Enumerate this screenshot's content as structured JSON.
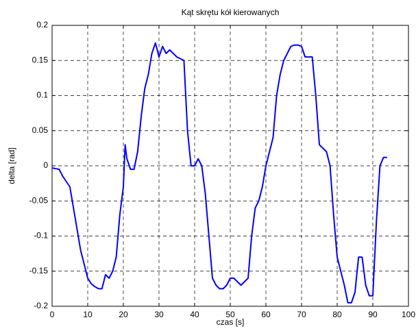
{
  "chart_data": {
    "type": "line",
    "title": "Kąt skrętu kół kierowanych",
    "x_label": "czas [s]",
    "y_label": "delta [rad]",
    "x": [
      0,
      2,
      3,
      5,
      6,
      7,
      8,
      9,
      10,
      11,
      12,
      13,
      14,
      15,
      16,
      17,
      18,
      19,
      20,
      20.5,
      21,
      22,
      23,
      24,
      25,
      26,
      27,
      28,
      29,
      30,
      31,
      32,
      33,
      34,
      35,
      37,
      38,
      39,
      40,
      41,
      42,
      43,
      44,
      45,
      46,
      47,
      48,
      49,
      50,
      51,
      52,
      53,
      55,
      56,
      57,
      58,
      59,
      60,
      61,
      62,
      63,
      64,
      65,
      66,
      67,
      68,
      69,
      70,
      71,
      72,
      73,
      74,
      75,
      76,
      77,
      78,
      79,
      80,
      81,
      82,
      83,
      84,
      85,
      86,
      87,
      88,
      89,
      90,
      91,
      92,
      93,
      94
    ],
    "series": [
      {
        "color": "#0000ff",
        "values": [
          -0.003,
          -0.005,
          -0.015,
          -0.03,
          -0.06,
          -0.09,
          -0.12,
          -0.14,
          -0.16,
          -0.168,
          -0.172,
          -0.175,
          -0.175,
          -0.155,
          -0.16,
          -0.15,
          -0.13,
          -0.07,
          -0.03,
          0.03,
          0.01,
          -0.005,
          -0.005,
          0.02,
          0.07,
          0.11,
          0.13,
          0.16,
          0.175,
          0.155,
          0.17,
          0.16,
          0.165,
          0.16,
          0.155,
          0.15,
          0.05,
          0.0,
          0.0,
          0.01,
          0.0,
          -0.04,
          -0.1,
          -0.16,
          -0.17,
          -0.175,
          -0.175,
          -0.17,
          -0.16,
          -0.16,
          -0.165,
          -0.17,
          -0.16,
          -0.1,
          -0.06,
          -0.05,
          -0.03,
          0.0,
          0.02,
          0.04,
          0.1,
          0.13,
          0.15,
          0.16,
          0.17,
          0.172,
          0.172,
          0.17,
          0.155,
          0.155,
          0.155,
          0.1,
          0.03,
          0.025,
          0.02,
          0.0,
          -0.07,
          -0.13,
          -0.15,
          -0.17,
          -0.195,
          -0.195,
          -0.18,
          -0.13,
          -0.13,
          -0.17,
          -0.185,
          -0.185,
          -0.08,
          0.0,
          0.012,
          0.012
        ]
      }
    ],
    "xlim": [
      0,
      100
    ],
    "xticks": [
      0,
      10,
      20,
      30,
      40,
      50,
      60,
      70,
      80,
      90,
      100
    ],
    "ylim": [
      -0.2,
      0.2
    ],
    "yticks": [
      -0.2,
      -0.15,
      -0.1,
      -0.05,
      0,
      0.05,
      0.1,
      0.15,
      0.2
    ],
    "grid": true
  }
}
